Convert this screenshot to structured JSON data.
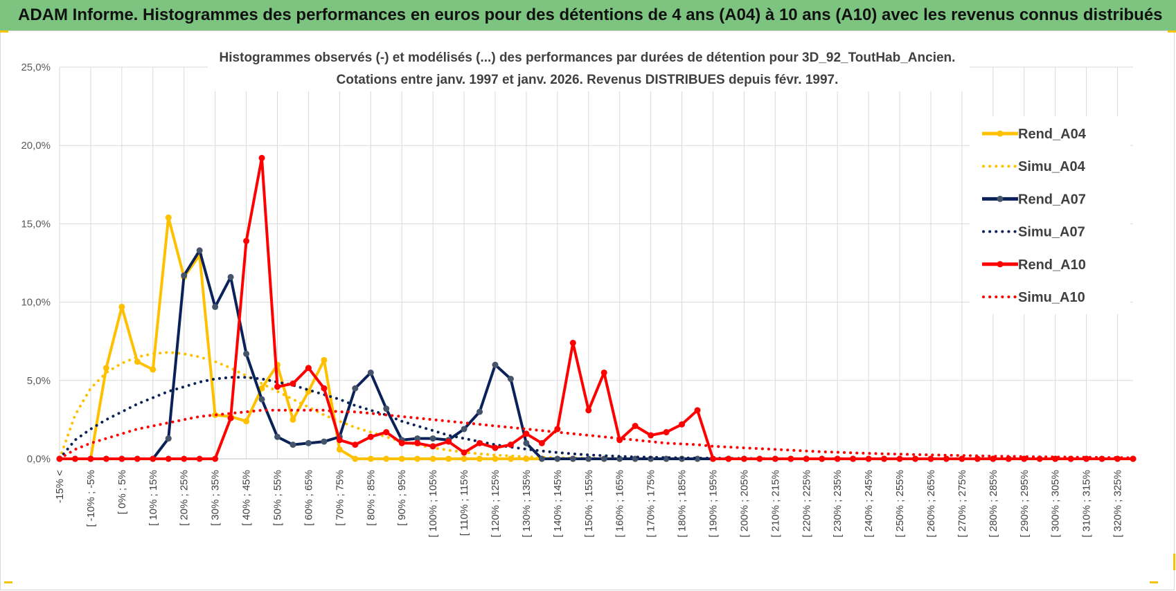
{
  "header": {
    "title": "ADAM Informe. Histogrammes des performances en euros pour des détentions de 4 ans (A04) à 10 ans (A10) avec les revenus connus distribués"
  },
  "colors": {
    "banner": "#7cc47f",
    "a04": "#ffc000",
    "a07": "#0b2259",
    "a07_marker": "#44546a",
    "a10": "#ff0000",
    "grid": "#d9d9d9"
  },
  "chart_data": {
    "type": "line",
    "title_line1": "Histogrammes observés (-) et modélisés (...) des performances par durées de détention pour 3D_92_ToutHab_Ancien.",
    "title_line2": "Cotations entre janv. 1997 et janv. 2026. Revenus DISTRIBUES depuis févr. 1997.",
    "ylim": [
      0,
      25
    ],
    "y_ticks": [
      "0,0%",
      "5,0%",
      "10,0%",
      "15,0%",
      "20,0%",
      "25,0%"
    ],
    "x_labels": [
      "-15% <",
      "[ -10% ; -5%",
      "[ 0% ; 5%",
      "[ 10% ; 15%",
      "[ 20% ; 25%",
      "[ 30% ; 35%",
      "[ 40% ; 45%",
      "[ 50% ; 55%",
      "[ 60% ; 65%",
      "[ 70% ; 75%",
      "[ 80% ; 85%",
      "[ 90% ; 95%",
      "[ 100% ; 105%",
      "[ 110% ; 115%",
      "[ 120% ; 125%",
      "[ 130% ; 135%",
      "[ 140% ; 145%",
      "[ 150% ; 155%",
      "[ 160% ; 165%",
      "[ 170% ; 175%",
      "[ 180% ; 185%",
      "[ 190% ; 195%",
      "[ 200% ; 205%",
      "[ 210% ; 215%",
      "[ 220% ; 225%",
      "[ 230% ; 235%",
      "[ 240% ; 245%",
      "[ 250% ; 255%",
      "[ 260% ; 265%",
      "[ 270% ; 275%",
      "[ 280% ; 285%",
      "[ 290% ; 295%",
      "[ 300% ; 305%",
      "[ 310% ; 315%",
      "[ 320% ; 325%"
    ],
    "n_bins": 70,
    "series": [
      {
        "name": "Rend_A04",
        "style": "solid",
        "color": "#ffc000",
        "marker": "#ffc000",
        "values": [
          0,
          0,
          0,
          5.8,
          9.7,
          6.2,
          5.7,
          15.4,
          11.6,
          13,
          2.8,
          2.7,
          2.4,
          4.5,
          6,
          2.5,
          4.3,
          6.3,
          0.6,
          0,
          0,
          0,
          0,
          0,
          0,
          0,
          0,
          0,
          0,
          0,
          0,
          0,
          0,
          0,
          0,
          0,
          0,
          0,
          0,
          0,
          0,
          0,
          0,
          0,
          0,
          0,
          0,
          0,
          0,
          0,
          0,
          0,
          0,
          0,
          0,
          0,
          0,
          0,
          0,
          0,
          0,
          0,
          0,
          0,
          0,
          0,
          0,
          0,
          0,
          0
        ]
      },
      {
        "name": "Simu_A04",
        "style": "dotted",
        "color": "#ffc000",
        "values": [
          0,
          2.8,
          4.5,
          5.5,
          6.1,
          6.5,
          6.7,
          6.8,
          6.7,
          6.5,
          6.2,
          5.8,
          5.3,
          4.8,
          4.3,
          3.8,
          3.3,
          2.8,
          2.4,
          2,
          1.7,
          1.4,
          1.1,
          0.9,
          0.7,
          0.55,
          0.42,
          0.32,
          0.24,
          0.18,
          0.13,
          0.1,
          0.07,
          0.05,
          0.04,
          0.03,
          0.02,
          0.01,
          0.01,
          0,
          0,
          0,
          0,
          0,
          0,
          0,
          0,
          0,
          0,
          0,
          0,
          0,
          0,
          0,
          0,
          0,
          0,
          0,
          0,
          0,
          0,
          0,
          0,
          0,
          0,
          0,
          0,
          0,
          0,
          0
        ]
      },
      {
        "name": "Rend_A07",
        "style": "solid",
        "color": "#0b2259",
        "marker": "#44546a",
        "values": [
          0,
          0,
          0,
          0,
          0,
          0,
          0,
          1.3,
          11.7,
          13.3,
          9.7,
          11.6,
          6.7,
          3.8,
          1.4,
          0.9,
          1,
          1.1,
          1.4,
          4.5,
          5.5,
          3.2,
          1.2,
          1.3,
          1.3,
          1.2,
          1.9,
          3,
          6,
          5.1,
          1,
          0,
          0,
          0,
          0,
          0,
          0,
          0,
          0,
          0,
          0,
          0,
          0,
          0,
          0,
          0,
          0,
          0,
          0,
          0,
          0,
          0,
          0,
          0,
          0,
          0,
          0,
          0,
          0,
          0,
          0,
          0,
          0,
          0,
          0,
          0,
          0,
          0,
          0,
          0
        ]
      },
      {
        "name": "Simu_A07",
        "style": "dotted",
        "color": "#0b2259",
        "values": [
          0,
          1.2,
          1.9,
          2.5,
          3,
          3.5,
          3.9,
          4.3,
          4.6,
          4.9,
          5.1,
          5.2,
          5.2,
          5.1,
          4.9,
          4.7,
          4.4,
          4.1,
          3.8,
          3.4,
          3.1,
          2.8,
          2.4,
          2.1,
          1.8,
          1.5,
          1.3,
          1.1,
          0.9,
          0.75,
          0.62,
          0.5,
          0.4,
          0.32,
          0.25,
          0.2,
          0.16,
          0.12,
          0.1,
          0.08,
          0.06,
          0.05,
          0.04,
          0.03,
          0.02,
          0.02,
          0.01,
          0.01,
          0,
          0,
          0,
          0,
          0,
          0,
          0,
          0,
          0,
          0,
          0,
          0,
          0,
          0,
          0,
          0,
          0,
          0,
          0,
          0,
          0,
          0
        ]
      },
      {
        "name": "Rend_A10",
        "style": "solid",
        "color": "#ff0000",
        "marker": "#ff0000",
        "values": [
          0,
          0,
          0,
          0,
          0,
          0,
          0,
          0,
          0,
          0,
          0,
          2.6,
          13.9,
          19.2,
          4.6,
          4.8,
          5.8,
          4.5,
          1.2,
          0.9,
          1.4,
          1.7,
          1,
          1,
          0.8,
          1.1,
          0.4,
          1,
          0.7,
          0.9,
          1.6,
          1,
          1.9,
          7.4,
          3.1,
          5.5,
          1.2,
          2.1,
          1.5,
          1.7,
          2.2,
          3.1,
          0,
          0,
          0,
          0,
          0,
          0,
          0,
          0,
          0,
          0,
          0,
          0,
          0,
          0,
          0,
          0,
          0,
          0,
          0,
          0,
          0,
          0,
          0,
          0,
          0,
          0,
          0,
          0
        ]
      },
      {
        "name": "Simu_A10",
        "style": "dotted",
        "color": "#ff0000",
        "values": [
          0,
          0.6,
          1,
          1.3,
          1.6,
          1.9,
          2.1,
          2.3,
          2.5,
          2.7,
          2.8,
          2.9,
          3,
          3.1,
          3.1,
          3.1,
          3.1,
          3.1,
          3,
          3,
          2.9,
          2.8,
          2.7,
          2.6,
          2.5,
          2.4,
          2.3,
          2.2,
          2.1,
          2,
          1.9,
          1.8,
          1.7,
          1.6,
          1.5,
          1.4,
          1.3,
          1.2,
          1.1,
          1,
          0.95,
          0.9,
          0.8,
          0.75,
          0.7,
          0.65,
          0.6,
          0.55,
          0.5,
          0.45,
          0.42,
          0.38,
          0.35,
          0.32,
          0.3,
          0.27,
          0.25,
          0.23,
          0.21,
          0.19,
          0.17,
          0.16,
          0.14,
          0.13,
          0.12,
          0.11,
          0.1,
          0.09,
          0.08,
          0.07
        ]
      }
    ],
    "legend": [
      "Rend_A04",
      "Simu_A04",
      "Rend_A07",
      "Simu_A07",
      "Rend_A10",
      "Simu_A10"
    ]
  }
}
